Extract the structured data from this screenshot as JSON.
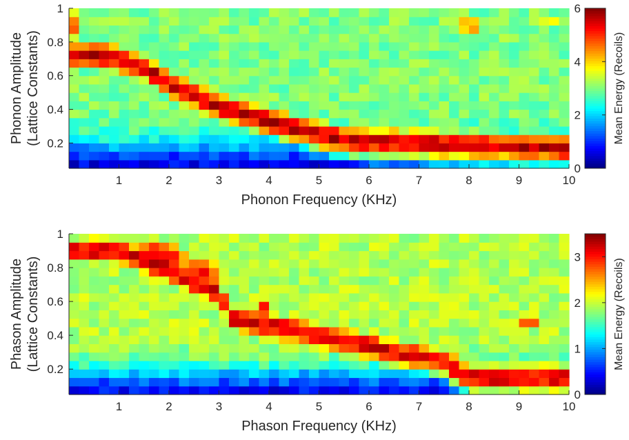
{
  "colors": {
    "colormap": "jet",
    "axis": "#262626",
    "background": "#ffffff"
  },
  "chart_data": [
    {
      "type": "heatmap",
      "xlabel": "Phonon Frequency (KHz)",
      "ylabel_line1": "Phonon Amplitude",
      "ylabel_line2": "(Lattice Constants)",
      "xlim": [
        0,
        10
      ],
      "ylim": [
        0.05,
        1
      ],
      "xticks": [
        1,
        2,
        3,
        4,
        5,
        6,
        7,
        8,
        9,
        10
      ],
      "yticks": [
        0.2,
        0.4,
        0.6,
        0.8,
        1
      ],
      "xtick_labels": [
        "1",
        "2",
        "3",
        "4",
        "5",
        "6",
        "7",
        "8",
        "9",
        "10"
      ],
      "ytick_labels": [
        "0.2",
        "0.4",
        "0.6",
        "0.8",
        "1"
      ],
      "colorbar": {
        "label": "Mean Energy (Recoils)",
        "range": [
          0,
          6
        ],
        "ticks": [
          0,
          2,
          4,
          6
        ],
        "tick_labels": [
          "0",
          "2",
          "4",
          "6"
        ]
      },
      "grid": false,
      "features": {
        "ridge": [
          [
            0.8,
            0.72
          ],
          [
            1.5,
            0.65
          ],
          [
            2.0,
            0.55
          ],
          [
            2.5,
            0.48
          ],
          [
            3.0,
            0.42
          ],
          [
            3.5,
            0.37
          ],
          [
            4.0,
            0.33
          ],
          [
            4.5,
            0.29
          ],
          [
            5.0,
            0.25
          ],
          [
            5.5,
            0.22
          ],
          [
            6.0,
            0.21
          ],
          [
            7.0,
            0.2
          ],
          [
            8.0,
            0.19
          ],
          [
            9.0,
            0.18
          ],
          [
            10.0,
            0.17
          ]
        ],
        "ridge_peak": 5.6,
        "background_slope": [
          0.0,
          0.35
        ],
        "blobs": [
          {
            "x": 8.0,
            "y": 0.9,
            "v": 4.6,
            "sx": 0.35,
            "sy": 0.08
          },
          {
            "x": 9.5,
            "y": 0.93,
            "v": 3.8,
            "sx": 0.5,
            "sy": 0.05
          },
          {
            "x": 0.1,
            "y": 0.9,
            "v": 4.5,
            "sx": 0.15,
            "sy": 0.1
          }
        ]
      }
    },
    {
      "type": "heatmap",
      "xlabel": "Phason Frequency (KHz)",
      "ylabel_line1": "Phason Amplitude",
      "ylabel_line2": "(Lattice Constants)",
      "xlim": [
        0,
        10
      ],
      "ylim": [
        0.05,
        1
      ],
      "xticks": [
        1,
        2,
        3,
        4,
        5,
        6,
        7,
        8,
        9,
        10
      ],
      "yticks": [
        0.2,
        0.4,
        0.6,
        0.8,
        1
      ],
      "xtick_labels": [
        "1",
        "2",
        "3",
        "4",
        "5",
        "6",
        "7",
        "8",
        "9",
        "10"
      ],
      "ytick_labels": [
        "0.2",
        "0.4",
        "0.6",
        "0.8",
        "1"
      ],
      "colorbar": {
        "label": "Mean Energy (Recoils)",
        "range": [
          0,
          3.5
        ],
        "ticks": [
          0,
          1,
          2,
          3
        ],
        "tick_labels": [
          "0",
          "1",
          "2",
          "3"
        ]
      },
      "grid": false,
      "features": {
        "ridge": [
          [
            1.0,
            0.9
          ],
          [
            2.0,
            0.78
          ],
          [
            3.0,
            0.65
          ],
          [
            3.3,
            0.5
          ],
          [
            5.0,
            0.4
          ],
          [
            5.8,
            0.35
          ],
          [
            6.5,
            0.3
          ],
          [
            7.5,
            0.25
          ],
          [
            8.0,
            0.15
          ]
        ],
        "ridge_peak": 3.2,
        "background_slope": [
          0.0,
          0.4
        ],
        "blobs": [
          {
            "x": 1.8,
            "y": 0.85,
            "v": 3.3,
            "sx": 0.6,
            "sy": 0.12
          },
          {
            "x": 2.6,
            "y": 0.75,
            "v": 3.2,
            "sx": 0.5,
            "sy": 0.12
          },
          {
            "x": 3.9,
            "y": 0.55,
            "v": 2.9,
            "sx": 0.1,
            "sy": 0.1
          },
          {
            "x": 4.6,
            "y": 0.55,
            "v": 2.8,
            "sx": 0.12,
            "sy": 0.12
          },
          {
            "x": 5.0,
            "y": 0.3,
            "v": 3.0,
            "sx": 0.08,
            "sy": 0.06
          },
          {
            "x": 6.9,
            "y": 0.27,
            "v": 3.0,
            "sx": 0.35,
            "sy": 0.05
          },
          {
            "x": 9.2,
            "y": 0.48,
            "v": 3.3,
            "sx": 0.15,
            "sy": 0.05
          }
        ]
      }
    }
  ]
}
